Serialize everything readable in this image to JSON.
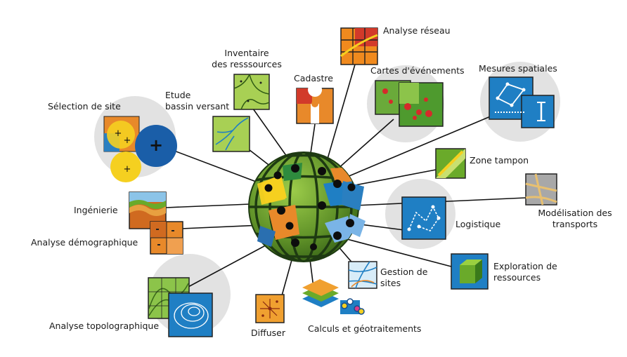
{
  "labels": {
    "analyse_reseau": "Analyse réseau",
    "inventaire_line1": "Inventaire",
    "inventaire_line2": "des resssources",
    "cadastre": "Cadastre",
    "cartes_evenements": "Cartes d'événements",
    "mesures_spatiales": "Mesures spatiales",
    "selection_site": "Sélection de site",
    "etude_line1": "Etude",
    "etude_line2": "bassin versant",
    "zone_tampon": "Zone tampon",
    "ingenierie": "Ingénierie",
    "modelisation_line1": "Modélisation des",
    "modelisation_line2": "transports",
    "logistique": "Logistique",
    "analyse_demographique": "Analyse démographique",
    "exploration_line1": "Exploration de",
    "exploration_line2": "ressources",
    "gestion_line1": "Gestion de",
    "gestion_line2": "sites",
    "analyse_topographique": "Analyse topolographique",
    "diffuser": "Diffuser",
    "calculs": "Calculs et géotraitements"
  },
  "icons": {
    "selection_site": "+",
    "colors": {
      "globe_green": "#6a9e2a",
      "globe_dark": "#1e3a12",
      "node": "#0d0d0d",
      "blue": "#1f7fc4",
      "dark_blue": "#1a4f8a",
      "yellow": "#f5d020",
      "orange": "#e8892a",
      "red": "#c83a2a",
      "halo": "#dedede"
    }
  }
}
